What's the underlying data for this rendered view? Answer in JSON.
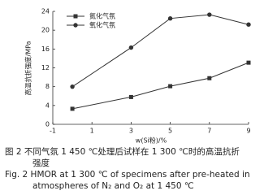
{
  "chart_data": {
    "type": "line",
    "x_label": "w(Si粉)/%",
    "y_label": "高温抗折强度/MPa",
    "series": [
      {
        "name": "氮化气氛",
        "marker": "square",
        "color": "#333333",
        "x": [
          0,
          3,
          5,
          7,
          9
        ],
        "values": [
          3.3,
          5.8,
          8.1,
          9.8,
          13.1
        ]
      },
      {
        "name": "氧化气氛",
        "marker": "circle",
        "color": "#333333",
        "x": [
          0,
          3,
          5,
          7,
          9
        ],
        "values": [
          8,
          16.3,
          22.5,
          23.3,
          21.2
        ]
      }
    ],
    "xlim": [
      -1,
      9
    ],
    "xticks": [
      -1,
      1,
      3,
      5,
      7,
      9
    ],
    "ylim": [
      0,
      24
    ],
    "yticks": [
      0,
      4,
      8,
      12,
      16,
      20,
      24
    ],
    "legend": "upper-left"
  },
  "caption": [
    "图 2   不同气氛 1 450 ℃处理后试样在 1 300 ℃时的高温抗折",
    "强度",
    "Fig. 2  HMOR at 1 300 ℃ of specimens after pre-heated in",
    "atmospheres of N₂ and O₂ at 1 450 ℃"
  ]
}
